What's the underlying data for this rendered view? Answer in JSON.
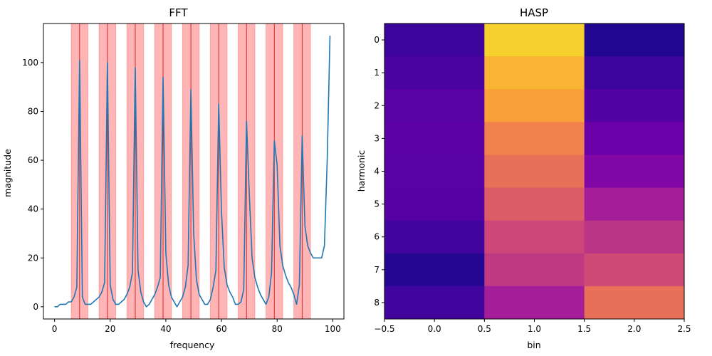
{
  "chart_data": [
    {
      "type": "line",
      "title": "FFT",
      "xlabel": "frequency",
      "ylabel": "magnitude",
      "xlim": [
        -4,
        104
      ],
      "ylim": [
        -5,
        116
      ],
      "xticks": [
        0,
        20,
        40,
        60,
        80,
        100
      ],
      "yticks": [
        0,
        20,
        40,
        60,
        80,
        100
      ],
      "grid": false,
      "line_color": "#1f77b4",
      "x": [
        0,
        1,
        2,
        3,
        4,
        5,
        6,
        7,
        8,
        9,
        10,
        11,
        12,
        13,
        14,
        15,
        16,
        17,
        18,
        19,
        20,
        21,
        22,
        23,
        24,
        25,
        26,
        27,
        28,
        29,
        30,
        31,
        32,
        33,
        34,
        35,
        36,
        37,
        38,
        39,
        40,
        41,
        42,
        43,
        44,
        45,
        46,
        47,
        48,
        49,
        50,
        51,
        52,
        53,
        54,
        55,
        56,
        57,
        58,
        59,
        60,
        61,
        62,
        63,
        64,
        65,
        66,
        67,
        68,
        69,
        70,
        71,
        72,
        73,
        74,
        75,
        76,
        77,
        78,
        79,
        80,
        81,
        82,
        83,
        84,
        85,
        86,
        87,
        88,
        89,
        90,
        91,
        92,
        93,
        94,
        95,
        96,
        97,
        98,
        99
      ],
      "y": [
        0,
        0,
        1,
        1,
        1,
        2,
        2,
        4,
        8,
        101,
        4,
        1,
        1,
        1,
        2,
        3,
        4,
        6,
        10,
        100,
        9,
        3,
        1,
        1,
        2,
        3,
        5,
        8,
        14,
        98,
        15,
        6,
        2,
        0,
        1,
        3,
        5,
        8,
        12,
        94,
        22,
        9,
        4,
        2,
        0,
        2,
        4,
        8,
        17,
        89,
        30,
        11,
        5,
        3,
        1,
        1,
        3,
        8,
        15,
        83,
        39,
        16,
        9,
        6,
        4,
        1,
        1,
        2,
        7,
        76,
        46,
        20,
        12,
        8,
        5,
        3,
        1,
        4,
        14,
        68,
        58,
        25,
        17,
        13,
        10,
        8,
        5,
        1,
        9,
        70,
        33,
        25,
        22,
        20,
        20,
        20,
        20,
        25,
        60,
        111
      ],
      "highlight": {
        "centers": [
          9,
          19,
          29,
          39,
          49,
          59,
          69,
          79,
          89
        ],
        "half_width": 3,
        "band_color": "#ff6b6b",
        "center_color": "#d62728"
      }
    },
    {
      "type": "heatmap",
      "title": "HASP",
      "xlabel": "bin",
      "ylabel": "harmonic",
      "colormap": "plasma",
      "xlim": [
        -0.5,
        2.5
      ],
      "ylim": [
        8.5,
        -0.5
      ],
      "xticks": [
        -0.5,
        0.0,
        0.5,
        1.0,
        1.5,
        2.0,
        2.5
      ],
      "xtick_labels": [
        "−0.5",
        "0.0",
        "0.5",
        "1.0",
        "1.5",
        "2.0",
        "2.5"
      ],
      "yticks": [
        0,
        1,
        2,
        3,
        4,
        5,
        6,
        7,
        8
      ],
      "values": [
        [
          0.12,
          0.97,
          0.05
        ],
        [
          0.16,
          0.95,
          0.12
        ],
        [
          0.2,
          0.93,
          0.18
        ],
        [
          0.21,
          0.87,
          0.25
        ],
        [
          0.2,
          0.8,
          0.33
        ],
        [
          0.19,
          0.72,
          0.45
        ],
        [
          0.13,
          0.63,
          0.55
        ],
        [
          0.06,
          0.57,
          0.64
        ],
        [
          0.13,
          0.45,
          0.8
        ]
      ]
    }
  ]
}
